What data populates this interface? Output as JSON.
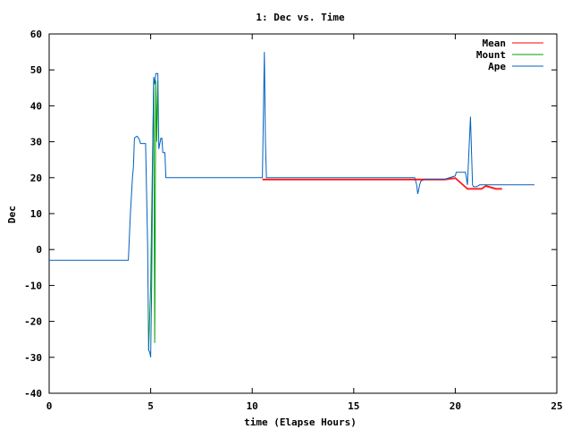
{
  "chart_data": {
    "type": "line",
    "title": "1: Dec vs. Time",
    "xlabel": "time (Elapse Hours)",
    "ylabel": "Dec",
    "xlim": [
      0,
      25
    ],
    "ylim": [
      -40,
      60
    ],
    "xticks": [
      "0",
      "5",
      "10",
      "15",
      "20",
      "25"
    ],
    "yticks": [
      "60",
      "50",
      "40",
      "30",
      "20",
      "10",
      "0",
      "-10",
      "-20",
      "-30",
      "-40"
    ],
    "legend_position": "top-right",
    "series": [
      {
        "name": "Mean",
        "color": "#ff0000",
        "x": [
          10.5,
          10.75,
          11.5,
          18.1,
          18.8,
          19.5,
          20.0,
          20.6,
          20.75,
          21.3,
          21.5,
          22.0,
          22.3
        ],
        "y": [
          19.6,
          19.6,
          19.6,
          19.6,
          19.6,
          19.6,
          20.0,
          17.0,
          17.0,
          17.0,
          17.8,
          17.0,
          17.0
        ]
      },
      {
        "name": "Mount",
        "color": "#00a000",
        "x": [
          4.9,
          5.0,
          5.05,
          5.15,
          5.2,
          5.25,
          5.3,
          5.35
        ],
        "y": [
          -28,
          -10,
          10,
          47,
          -26,
          47,
          30,
          47
        ]
      },
      {
        "name": "Ape",
        "color": "#0060c0",
        "x": [
          0,
          3.9,
          4.0,
          4.1,
          4.15,
          4.2,
          4.3,
          4.35,
          4.45,
          4.5,
          4.6,
          4.75,
          4.85,
          4.9,
          4.95,
          5.0,
          5.05,
          5.1,
          5.15,
          5.2,
          5.25,
          5.35,
          5.4,
          5.5,
          5.55,
          5.6,
          5.7,
          5.75,
          5.85,
          5.9,
          6.0,
          10.4,
          10.5,
          10.6,
          10.65,
          10.7,
          10.8,
          18.0,
          18.1,
          18.15,
          18.25,
          18.3,
          18.5,
          19.5,
          20.0,
          20.05,
          20.3,
          20.5,
          20.6,
          20.75,
          20.85,
          20.9,
          21.0,
          21.05,
          21.2,
          21.3,
          21.5,
          22.0,
          22.3,
          23.9
        ],
        "y": [
          -3,
          -3,
          10,
          20,
          23,
          31,
          31.5,
          31.5,
          30.5,
          29.5,
          29.5,
          29.5,
          1,
          -28,
          -28.5,
          -30,
          -10,
          27,
          48,
          46,
          49,
          49,
          28,
          31,
          31,
          27,
          27,
          20,
          20,
          20,
          20,
          20,
          20,
          55,
          30,
          20,
          20,
          20,
          18,
          15.5,
          18,
          19,
          19.6,
          19.6,
          20.5,
          21.5,
          21.5,
          21.5,
          18,
          37,
          18,
          17.5,
          17.5,
          17.5,
          18,
          18,
          18,
          18,
          18,
          18
        ]
      }
    ]
  }
}
